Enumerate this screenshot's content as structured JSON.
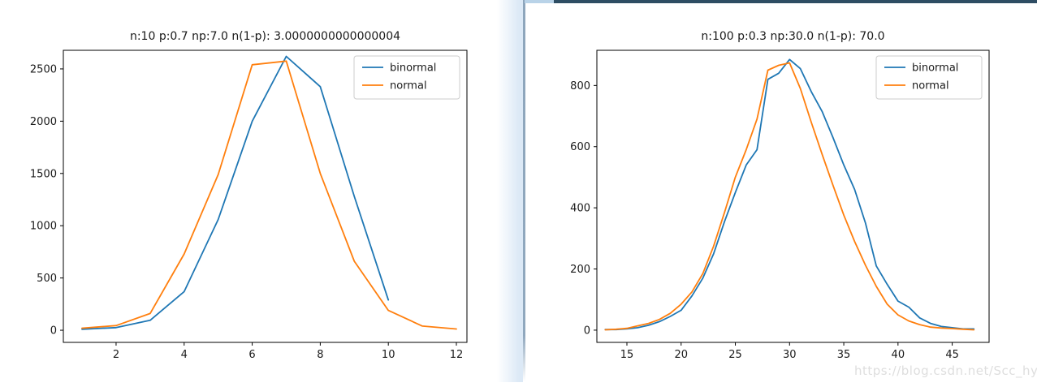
{
  "page": {
    "watermark": "https://blog.csdn.net/Scc_hy",
    "colors": {
      "binormal_line": "#1f77b4",
      "normal_line": "#ff7f0e",
      "divider": "#90a8be",
      "top_strip_light": "#b9d3e8",
      "top_strip_dark": "#2e4d63",
      "legend_border": "#cccccc",
      "spine": "#000000"
    }
  },
  "chart_data": [
    {
      "type": "line",
      "title": "n:10 p:0.7 np:7.0 n(1-p): 3.0000000000000004",
      "xlabel": "",
      "ylabel": "",
      "xlim": [
        0.45,
        12.31
      ],
      "ylim": [
        -116,
        2678
      ],
      "xticks": [
        2,
        4,
        6,
        8,
        10,
        12
      ],
      "yticks": [
        0,
        500,
        1000,
        1500,
        2000,
        2500
      ],
      "grid": false,
      "legend_position": "upper right",
      "series": [
        {
          "name": "binormal",
          "color": "#1f77b4",
          "x": [
            1,
            2,
            3,
            4,
            5,
            6,
            7,
            8,
            9,
            10
          ],
          "y": [
            10,
            25,
            95,
            370,
            1060,
            2000,
            2620,
            2330,
            1280,
            290
          ]
        },
        {
          "name": "normal",
          "color": "#ff7f0e",
          "x": [
            1,
            2,
            3,
            4,
            5,
            6,
            7,
            8,
            9,
            10,
            11,
            12
          ],
          "y": [
            20,
            45,
            160,
            730,
            1490,
            2540,
            2575,
            1500,
            660,
            190,
            40,
            12
          ]
        }
      ]
    },
    {
      "type": "line",
      "title": "n:100 p:0.3 np:30.0 n(1-p): 70.0",
      "xlabel": "",
      "ylabel": "",
      "xlim": [
        12.23,
        48.4
      ],
      "ylim": [
        -40,
        915
      ],
      "xticks": [
        15,
        20,
        25,
        30,
        35,
        40,
        45
      ],
      "yticks": [
        0,
        200,
        400,
        600,
        800
      ],
      "grid": false,
      "legend_position": "upper right",
      "series": [
        {
          "name": "binormal",
          "color": "#1f77b4",
          "x": [
            13,
            14,
            15,
            16,
            17,
            18,
            19,
            20,
            21,
            22,
            23,
            24,
            25,
            26,
            27,
            28,
            29,
            30,
            31,
            32,
            33,
            34,
            35,
            36,
            37,
            38,
            39,
            40,
            41,
            42,
            43,
            44,
            45,
            46,
            47
          ],
          "y": [
            2,
            2,
            4,
            8,
            16,
            28,
            45,
            65,
            112,
            170,
            250,
            355,
            450,
            540,
            590,
            820,
            840,
            885,
            855,
            780,
            715,
            630,
            540,
            460,
            350,
            210,
            150,
            95,
            75,
            40,
            22,
            12,
            8,
            4,
            4
          ]
        },
        {
          "name": "normal",
          "color": "#ff7f0e",
          "x": [
            13,
            14,
            15,
            16,
            17,
            18,
            19,
            20,
            21,
            22,
            23,
            24,
            25,
            26,
            27,
            28,
            29,
            30,
            31,
            32,
            33,
            34,
            35,
            36,
            37,
            38,
            39,
            40,
            41,
            42,
            43,
            44,
            45,
            46,
            47
          ],
          "y": [
            1,
            3,
            6,
            14,
            22,
            35,
            55,
            85,
            125,
            185,
            275,
            385,
            500,
            590,
            690,
            850,
            866,
            874,
            790,
            680,
            575,
            474,
            376,
            290,
            212,
            143,
            85,
            50,
            30,
            18,
            10,
            7,
            5,
            3,
            1
          ]
        }
      ]
    }
  ]
}
